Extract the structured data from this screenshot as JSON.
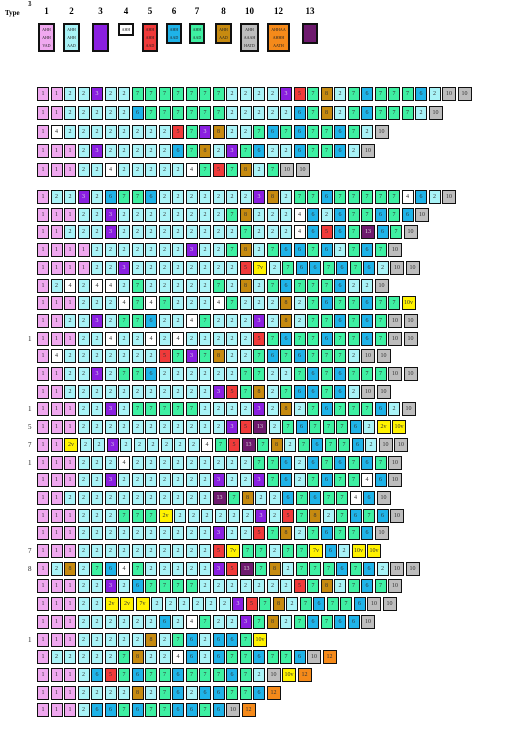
{
  "legend": {
    "label": "Type",
    "types": [
      {
        "num": "1",
        "code": "1",
        "lines": [
          "AHH",
          "AHH",
          "VAD"
        ],
        "color": "#f0a8ef"
      },
      {
        "num": "2",
        "code": "2",
        "lines": [
          "AHH",
          "AHH",
          "AAD"
        ],
        "color": "#a9f3f7"
      },
      {
        "num": "3",
        "code": "3",
        "lines": [
          "",
          "",
          ""
        ],
        "color": "#8a1fe0"
      },
      {
        "num": "4",
        "code": "4",
        "lines": [
          "AHH"
        ],
        "color": "#ffffff"
      },
      {
        "num": "5",
        "code": "5",
        "lines": [
          "AHH",
          "AHH",
          "AAD"
        ],
        "color": "#f03a3a"
      },
      {
        "num": "6",
        "code": "6",
        "lines": [
          "AHH",
          "AAD"
        ],
        "color": "#1fb3e8"
      },
      {
        "num": "7",
        "code": "7",
        "lines": [
          "AHH",
          "AAD"
        ],
        "color": "#3ef0a2"
      },
      {
        "num": "8",
        "code": "8",
        "lines": [
          "AHH",
          "AAD"
        ],
        "color": "#c68a10"
      },
      {
        "num": "10",
        "code": "10",
        "lines": [
          "AHH",
          "AAAH",
          "HATD"
        ],
        "color": "#bdbdbd"
      },
      {
        "num": "12",
        "code": "12",
        "lines": [
          "AHHAA",
          "AHHH",
          "AATH"
        ],
        "color": "#f58a1a"
      },
      {
        "num": "13",
        "code": "13",
        "lines": [
          "",
          ""
        ],
        "color": "#6e1a6e"
      }
    ],
    "extra": [
      {
        "code": "7v",
        "color": "#fff200"
      },
      {
        "code": "2v",
        "color": "#fff200"
      },
      {
        "code": "10v",
        "color": "#fff200"
      },
      {
        "code": "11",
        "color": "#7a2a7a"
      }
    ]
  },
  "row_labels": [
    {
      "row": 13,
      "text": "1"
    },
    {
      "row": 17,
      "text": "1"
    },
    {
      "row": 18,
      "text": "5"
    },
    {
      "row": 19,
      "text": "7"
    },
    {
      "row": 20,
      "text": "1"
    },
    {
      "row": 25,
      "text": "7"
    },
    {
      "row": 26,
      "text": "8"
    },
    {
      "row": 30,
      "text": "1"
    },
    {
      "row": 35,
      "text": "1"
    },
    {
      "row": 38,
      "text": "3"
    }
  ],
  "rows": [
    [
      "1",
      "1",
      "2",
      "2",
      "3",
      "2",
      "2",
      "7",
      "7",
      "7",
      "7",
      "7",
      "7",
      "7",
      "2",
      "2",
      "2",
      "2",
      "3",
      "5",
      "7",
      "8",
      "2",
      "7",
      "6",
      "7",
      "7",
      "7",
      "6",
      "2",
      "10",
      "10"
    ],
    [
      "1",
      "1",
      "2",
      "2",
      "2",
      "2",
      "2",
      "6",
      "7",
      "7",
      "7",
      "7",
      "7",
      "7",
      "2",
      "2",
      "2",
      "2",
      "2",
      "6",
      "7",
      "8",
      "2",
      "7",
      "6",
      "7",
      "7",
      "7",
      "2",
      "10"
    ],
    [
      "1",
      "4",
      "2",
      "2",
      "2",
      "2",
      "2",
      "2",
      "2",
      "2",
      "5",
      "7",
      "3",
      "8",
      "2",
      "2",
      "7",
      "6",
      "7",
      "6",
      "7",
      "7",
      "6",
      "7",
      "2",
      "10"
    ],
    [
      "1",
      "1",
      "1",
      "2",
      "3",
      "2",
      "2",
      "2",
      "2",
      "2",
      "6",
      "7",
      "8",
      "2",
      "3",
      "7",
      "6",
      "2",
      "2",
      "6",
      "7",
      "7",
      "6",
      "2",
      "10"
    ],
    [
      "1",
      "1",
      "1",
      "2",
      "2",
      "4",
      "2",
      "2",
      "2",
      "2",
      "2",
      "4",
      "7",
      "5",
      "7",
      "8",
      "2",
      "7",
      "10",
      "10"
    ],
    [
      "1",
      "2",
      "2",
      "3",
      "2",
      "6",
      "7",
      "7",
      "6",
      "2",
      "2",
      "2",
      "2",
      "2",
      "2",
      "2",
      "3",
      "8",
      "2",
      "7",
      "7",
      "6",
      "7",
      "7",
      "7",
      "7",
      "7",
      "4",
      "6",
      "2",
      "10"
    ],
    [
      "1",
      "1",
      "1",
      "2",
      "2",
      "3",
      "2",
      "2",
      "2",
      "2",
      "2",
      "2",
      "2",
      "2",
      "7",
      "8",
      "2",
      "2",
      "2",
      "4",
      "6",
      "2",
      "6",
      "7",
      "7",
      "6",
      "7",
      "6",
      "10"
    ],
    [
      "1",
      "1",
      "2",
      "2",
      "2",
      "3",
      "2",
      "2",
      "2",
      "2",
      "2",
      "2",
      "2",
      "2",
      "2",
      "7",
      "2",
      "2",
      "2",
      "4",
      "6",
      "5",
      "6",
      "7",
      "13",
      "6",
      "7",
      "10"
    ],
    [
      "1",
      "1",
      "1",
      "1",
      "2",
      "2",
      "2",
      "2",
      "2",
      "2",
      "2",
      "3",
      "2",
      "2",
      "7",
      "8",
      "2",
      "7",
      "6",
      "6",
      "7",
      "6",
      "2",
      "7",
      "6",
      "7",
      "10"
    ],
    [
      "1",
      "1",
      "1",
      "1",
      "2",
      "2",
      "3",
      "2",
      "2",
      "2",
      "2",
      "2",
      "2",
      "2",
      "2",
      "5",
      "7v",
      "2",
      "7",
      "6",
      "6",
      "7",
      "6",
      "7",
      "6",
      "2",
      "10",
      "10"
    ],
    [
      "1",
      "2",
      "4",
      "2",
      "4",
      "4",
      "2",
      "7",
      "2",
      "2",
      "2",
      "2",
      "2",
      "7",
      "2",
      "8",
      "2",
      "7",
      "6",
      "7",
      "7",
      "7",
      "6",
      "2",
      "2",
      "10"
    ],
    [
      "1",
      "1",
      "1",
      "2",
      "2",
      "2",
      "4",
      "7",
      "4",
      "7",
      "2",
      "2",
      "2",
      "4",
      "7",
      "2",
      "2",
      "2",
      "8",
      "2",
      "7",
      "6",
      "7",
      "7",
      "6",
      "7",
      "7",
      "10v"
    ],
    [
      "1",
      "1",
      "2",
      "2",
      "3",
      "2",
      "7",
      "7",
      "6",
      "2",
      "2",
      "4",
      "7",
      "2",
      "2",
      "2",
      "3",
      "2",
      "8",
      "2",
      "7",
      "7",
      "6",
      "7",
      "6",
      "7",
      "10",
      "10"
    ],
    [
      "1",
      "1",
      "1",
      "2",
      "2",
      "4",
      "2",
      "2",
      "4",
      "2",
      "4",
      "2",
      "2",
      "2",
      "2",
      "2",
      "5",
      "7",
      "6",
      "7",
      "7",
      "6",
      "7",
      "7",
      "6",
      "7",
      "10",
      "10"
    ],
    [
      "1",
      "4",
      "2",
      "2",
      "2",
      "2",
      "2",
      "2",
      "2",
      "5",
      "7",
      "3",
      "7",
      "8",
      "2",
      "2",
      "7",
      "6",
      "7",
      "6",
      "7",
      "7",
      "7",
      "2",
      "10",
      "10"
    ],
    [
      "1",
      "1",
      "2",
      "2",
      "3",
      "2",
      "7",
      "7",
      "6",
      "2",
      "2",
      "2",
      "2",
      "2",
      "2",
      "7",
      "7",
      "2",
      "2",
      "7",
      "6",
      "7",
      "6",
      "7",
      "7",
      "7",
      "10",
      "10"
    ],
    [
      "1",
      "1",
      "2",
      "2",
      "2",
      "2",
      "2",
      "2",
      "2",
      "2",
      "2",
      "2",
      "2",
      "3",
      "5",
      "7",
      "8",
      "2",
      "7",
      "6",
      "6",
      "7",
      "6",
      "2",
      "10",
      "10"
    ],
    [
      "1",
      "1",
      "1",
      "2",
      "2",
      "3",
      "2",
      "7",
      "7",
      "7",
      "7",
      "7",
      "2",
      "2",
      "2",
      "2",
      "3",
      "2",
      "8",
      "2",
      "7",
      "6",
      "7",
      "7",
      "7",
      "6",
      "2",
      "10"
    ],
    [
      "1",
      "1",
      "1",
      "2",
      "2",
      "2",
      "2",
      "2",
      "2",
      "2",
      "2",
      "2",
      "2",
      "2",
      "3",
      "5",
      "13",
      "2",
      "7",
      "6",
      "7",
      "7",
      "7",
      "6",
      "2",
      "2v",
      "10v"
    ],
    [
      "1",
      "1",
      "2v",
      "2",
      "2",
      "3",
      "2",
      "2",
      "2",
      "2",
      "2",
      "2",
      "4",
      "7",
      "5",
      "13",
      "7",
      "8",
      "2",
      "7",
      "6",
      "7",
      "7",
      "6",
      "2",
      "10",
      "10"
    ],
    [
      "1",
      "1",
      "1",
      "2",
      "2",
      "2",
      "4",
      "2",
      "2",
      "2",
      "2",
      "2",
      "2",
      "2",
      "2",
      "2",
      "7",
      "7",
      "6",
      "2",
      "6",
      "7",
      "6",
      "7",
      "6",
      "7",
      "10"
    ],
    [
      "1",
      "1",
      "1",
      "2",
      "2",
      "3",
      "2",
      "2",
      "2",
      "2",
      "2",
      "2",
      "2",
      "3",
      "2",
      "2",
      "3",
      "7",
      "6",
      "2",
      "7",
      "6",
      "7",
      "7",
      "4",
      "6",
      "10"
    ],
    [
      "1",
      "1",
      "2",
      "2",
      "2",
      "2",
      "2",
      "2",
      "2",
      "2",
      "2",
      "2",
      "2",
      "13",
      "7",
      "8",
      "2",
      "2",
      "6",
      "7",
      "6",
      "7",
      "7",
      "4",
      "6",
      "10"
    ],
    [
      "1",
      "1",
      "1",
      "2",
      "2",
      "2",
      "7",
      "7",
      "7",
      "2v",
      "2",
      "2",
      "2",
      "2",
      "2",
      "2",
      "3",
      "2",
      "5",
      "7",
      "8",
      "2",
      "7",
      "6",
      "7",
      "6",
      "10"
    ],
    [
      "1",
      "1",
      "1",
      "2",
      "2",
      "2",
      "2",
      "2",
      "2",
      "2",
      "2",
      "2",
      "2",
      "3",
      "2",
      "2",
      "5",
      "7",
      "8",
      "2",
      "7",
      "6",
      "7",
      "7",
      "6",
      "10"
    ],
    [
      "1",
      "1",
      "1",
      "2",
      "2",
      "2",
      "2",
      "2",
      "2",
      "2",
      "2",
      "2",
      "2",
      "5",
      "7v",
      "7",
      "7",
      "2",
      "7",
      "7",
      "7v",
      "6",
      "2",
      "10v",
      "10v"
    ],
    [
      "1",
      "2",
      "8",
      "2",
      "7",
      "6",
      "4",
      "7",
      "2",
      "2",
      "2",
      "2",
      "2",
      "3",
      "5",
      "13",
      "7",
      "8",
      "2",
      "7",
      "7",
      "7",
      "6",
      "7",
      "6",
      "2",
      "10",
      "10"
    ],
    [
      "1",
      "1",
      "1",
      "2",
      "2",
      "3",
      "2",
      "6",
      "7",
      "7",
      "7",
      "7",
      "2",
      "2",
      "2",
      "2",
      "2",
      "2",
      "2",
      "5",
      "7",
      "8",
      "2",
      "7",
      "6",
      "7",
      "10"
    ],
    [
      "1",
      "1",
      "1",
      "2",
      "2",
      "2v",
      "2v",
      "7v",
      "2",
      "2",
      "2",
      "2",
      "2",
      "2",
      "3",
      "5",
      "7",
      "8",
      "2",
      "7",
      "6",
      "7",
      "7",
      "6",
      "10",
      "10"
    ],
    [
      "1",
      "1",
      "1",
      "2",
      "2",
      "2",
      "2",
      "2",
      "2",
      "6",
      "2",
      "4",
      "7",
      "2",
      "2",
      "3",
      "7",
      "8",
      "2",
      "7",
      "6",
      "7",
      "6",
      "6",
      "10"
    ],
    [
      "1",
      "1",
      "1",
      "2",
      "2",
      "2",
      "2",
      "2",
      "8",
      "2",
      "7",
      "6",
      "2",
      "6",
      "6",
      "7",
      "10v"
    ],
    [
      "1",
      "2",
      "2",
      "2",
      "2",
      "2",
      "7",
      "8",
      "2",
      "2",
      "4",
      "6",
      "2",
      "6",
      "7",
      "7",
      "6",
      "7",
      "7",
      "6",
      "10",
      "12"
    ],
    [
      "1",
      "1",
      "1",
      "2",
      "6",
      "5",
      "7",
      "6",
      "7",
      "7",
      "6",
      "7",
      "7",
      "7",
      "6",
      "7",
      "2",
      "10",
      "10v",
      "12"
    ],
    [
      "1",
      "1",
      "1",
      "2",
      "2",
      "2",
      "2",
      "8",
      "2",
      "7",
      "6",
      "2",
      "6",
      "6",
      "7",
      "7",
      "6",
      "12"
    ],
    [
      "1",
      "1",
      "1",
      "2",
      "6",
      "6",
      "7",
      "6",
      "7",
      "7",
      "6",
      "6",
      "7",
      "6",
      "10",
      "12"
    ]
  ]
}
